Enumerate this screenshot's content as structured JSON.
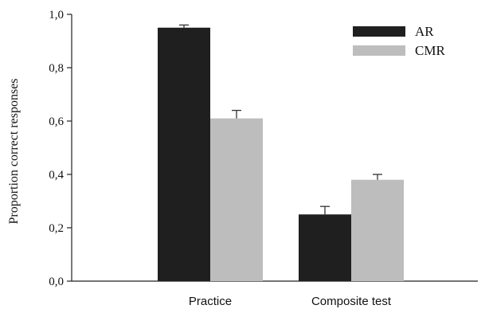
{
  "chart_data": {
    "type": "bar",
    "categories": [
      "Practice",
      "Composite test"
    ],
    "series": [
      {
        "name": "AR",
        "color": "#1f1f1f",
        "values": [
          0.95,
          0.25
        ],
        "errors": [
          0.01,
          0.03
        ]
      },
      {
        "name": "CMR",
        "color": "#bdbdbd",
        "values": [
          0.61,
          0.38
        ],
        "errors": [
          0.03,
          0.02
        ]
      }
    ],
    "ylabel": "Proportion correct responses",
    "xlabel": "",
    "ylim": [
      0,
      1
    ],
    "yticks": [
      "0,0",
      "0,2",
      "0,4",
      "0,6",
      "0,8",
      "1,0"
    ],
    "yticks_values": [
      0,
      0.2,
      0.4,
      0.6,
      0.8,
      1.0
    ],
    "grid": false,
    "legend_position": "top-right"
  }
}
